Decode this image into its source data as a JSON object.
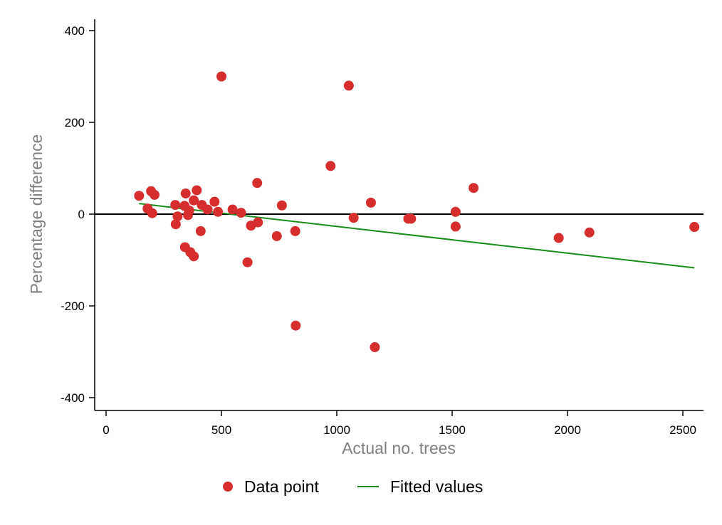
{
  "chart_data": {
    "type": "scatter",
    "title": "",
    "xlabel": "Actual no. trees",
    "ylabel": "Percentage difference",
    "xlim": [
      -50,
      2600
    ],
    "ylim": [
      -420,
      425
    ],
    "xticks": [
      0,
      500,
      1000,
      1500,
      2000,
      2500
    ],
    "yticks": [
      -400,
      -200,
      0,
      200,
      400
    ],
    "reference_line_y": 0,
    "grid": false,
    "legend_position": "bottom-center",
    "colors": {
      "points": "#d62d2d",
      "fit": "#1a8a1a",
      "reference": "#000000",
      "axis_title": "#7f7f7f"
    },
    "series": [
      {
        "name": "Data point",
        "kind": "scatter",
        "points": [
          [
            143,
            40
          ],
          [
            180,
            12
          ],
          [
            195,
            50
          ],
          [
            200,
            2
          ],
          [
            210,
            42
          ],
          [
            300,
            20
          ],
          [
            302,
            -22
          ],
          [
            310,
            -5
          ],
          [
            340,
            18
          ],
          [
            345,
            45
          ],
          [
            342,
            -72
          ],
          [
            355,
            -2
          ],
          [
            360,
            8
          ],
          [
            365,
            -83
          ],
          [
            380,
            -92
          ],
          [
            380,
            30
          ],
          [
            393,
            52
          ],
          [
            410,
            -37
          ],
          [
            415,
            20
          ],
          [
            440,
            10
          ],
          [
            470,
            27
          ],
          [
            485,
            5
          ],
          [
            500,
            300
          ],
          [
            548,
            10
          ],
          [
            585,
            3
          ],
          [
            613,
            -105
          ],
          [
            628,
            -25
          ],
          [
            655,
            68
          ],
          [
            658,
            -18
          ],
          [
            740,
            -48
          ],
          [
            762,
            19
          ],
          [
            820,
            -37
          ],
          [
            822,
            -243
          ],
          [
            973,
            105
          ],
          [
            1052,
            280
          ],
          [
            1073,
            -8
          ],
          [
            1148,
            25
          ],
          [
            1165,
            -290
          ],
          [
            1310,
            -10
          ],
          [
            1322,
            -10
          ],
          [
            1515,
            5
          ],
          [
            1515,
            -27
          ],
          [
            1593,
            57
          ],
          [
            1962,
            -52
          ],
          [
            2095,
            -40
          ],
          [
            2550,
            -28
          ]
        ]
      },
      {
        "name": "Fitted values",
        "kind": "line",
        "points": [
          [
            143,
            23
          ],
          [
            2550,
            -117
          ]
        ]
      }
    ]
  }
}
